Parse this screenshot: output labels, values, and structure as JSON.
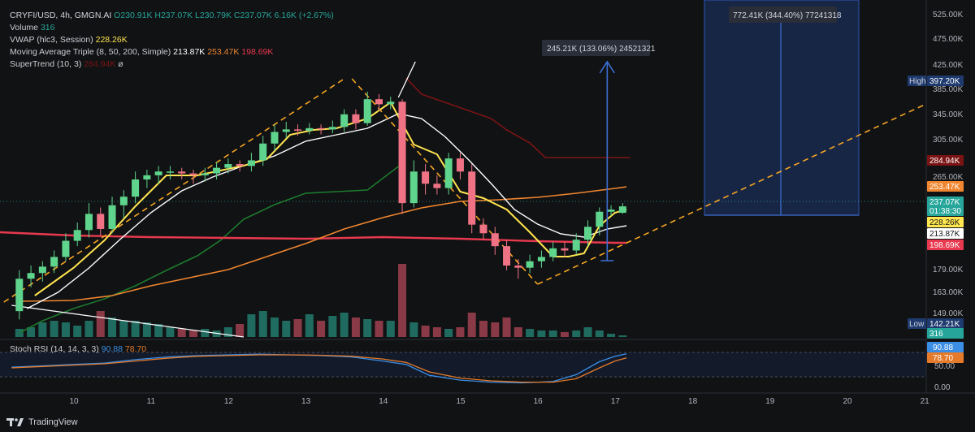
{
  "header": {
    "symbol": "CRYFI/USD, 4h, GMGN.AI",
    "ohlc": "O230.91K H237.07K L230.79K C237.07K 6.16K (+2.67%)",
    "volume_label": "Volume",
    "volume_value": "316",
    "vwap_label": "VWAP (hlc3, Session)",
    "vwap_value": "228.26K",
    "ma_label": "Moving Average Triple (8, 50, 200, Simple)",
    "ma_values": [
      "213.87K",
      "253.47K",
      "198.69K"
    ],
    "supertrend_label": "SuperTrend (10, 3)",
    "supertrend_value": "284.94K",
    "supertrend_extra": "ø"
  },
  "stoch": {
    "label": "Stoch RSI (14, 14, 3, 3)",
    "k_value": "90.88",
    "d_value": "78.70"
  },
  "branding": {
    "name": "TradingView"
  },
  "colors": {
    "up": "#26a69a",
    "up_bright": "#5fd48c",
    "down": "#ef5350",
    "down_light": "#f07385",
    "ma_fast": "#ffffff",
    "ma_mid": "#f0862f",
    "ma_slow": "#e8394f",
    "vwap": "#ffe54f",
    "supertrend_up": "#1d7a2e",
    "supertrend_down": "#7a1414",
    "stoch_k": "#3a8ee6",
    "stoch_d": "#e47a2a",
    "target": "#3d6fd6",
    "trend": "#f5a623"
  },
  "chart_data": [
    {
      "type": "candlestick",
      "title": "CRYFI/USD, 4h, GMGN.AI",
      "yaxis_ticks": [
        "525.00K",
        "475.00K",
        "425.00K",
        "385.00K",
        "345.00K",
        "305.00K",
        "265.00K",
        "179.00K",
        "163.00K",
        "149.00K"
      ],
      "xaxis_ticks": [
        "10",
        "11",
        "12",
        "13",
        "14",
        "15",
        "16",
        "17",
        "18",
        "19",
        "20",
        "21"
      ],
      "price_labels": [
        {
          "text": "High",
          "value": "397.20K",
          "color": "#1e3a6e"
        },
        {
          "text": "",
          "value": "284.94K",
          "color": "#7a1414"
        },
        {
          "text": "",
          "value": "253.47K",
          "color": "#f0862f"
        },
        {
          "text": "",
          "value": "237.07K",
          "color": "#26a69a"
        },
        {
          "text": "",
          "value": "01:38:30",
          "color": "#26a69a"
        },
        {
          "text": "",
          "value": "228.26K",
          "color": "#ffe54f"
        },
        {
          "text": "",
          "value": "213.87K",
          "color": "#ffffff"
        },
        {
          "text": "",
          "value": "198.69K",
          "color": "#e8394f"
        },
        {
          "text": "Low",
          "value": "142.21K",
          "color": "#1e3a6e"
        },
        {
          "text": "",
          "value": "316",
          "color": "#26a69a"
        }
      ],
      "candles": [
        {
          "x": 9.3,
          "o": 150,
          "c": 172,
          "h": 178,
          "l": 144
        },
        {
          "x": 9.45,
          "o": 172,
          "c": 176,
          "h": 182,
          "l": 166
        },
        {
          "x": 9.6,
          "o": 176,
          "c": 181,
          "h": 186,
          "l": 170
        },
        {
          "x": 9.75,
          "o": 181,
          "c": 190,
          "h": 196,
          "l": 176
        },
        {
          "x": 9.9,
          "o": 190,
          "c": 205,
          "h": 212,
          "l": 186
        },
        {
          "x": 10.05,
          "o": 205,
          "c": 215,
          "h": 222,
          "l": 200
        },
        {
          "x": 10.2,
          "o": 215,
          "c": 230,
          "h": 240,
          "l": 208
        },
        {
          "x": 10.35,
          "o": 230,
          "c": 216,
          "h": 236,
          "l": 210
        },
        {
          "x": 10.5,
          "o": 216,
          "c": 238,
          "h": 246,
          "l": 212
        },
        {
          "x": 10.65,
          "o": 238,
          "c": 246,
          "h": 252,
          "l": 226
        },
        {
          "x": 10.8,
          "o": 246,
          "c": 262,
          "h": 270,
          "l": 240
        },
        {
          "x": 10.95,
          "o": 262,
          "c": 266,
          "h": 272,
          "l": 254
        },
        {
          "x": 11.1,
          "o": 266,
          "c": 270,
          "h": 276,
          "l": 258
        },
        {
          "x": 11.25,
          "o": 270,
          "c": 270,
          "h": 276,
          "l": 262
        },
        {
          "x": 11.4,
          "o": 270,
          "c": 268,
          "h": 274,
          "l": 262
        },
        {
          "x": 11.55,
          "o": 268,
          "c": 266,
          "h": 272,
          "l": 258
        },
        {
          "x": 11.7,
          "o": 266,
          "c": 268,
          "h": 274,
          "l": 260
        },
        {
          "x": 11.85,
          "o": 268,
          "c": 274,
          "h": 280,
          "l": 262
        },
        {
          "x": 12.0,
          "o": 274,
          "c": 278,
          "h": 284,
          "l": 268
        },
        {
          "x": 12.15,
          "o": 278,
          "c": 276,
          "h": 282,
          "l": 270
        },
        {
          "x": 12.3,
          "o": 276,
          "c": 282,
          "h": 290,
          "l": 270
        },
        {
          "x": 12.45,
          "o": 282,
          "c": 300,
          "h": 310,
          "l": 276
        },
        {
          "x": 12.6,
          "o": 300,
          "c": 316,
          "h": 328,
          "l": 292
        },
        {
          "x": 12.75,
          "o": 316,
          "c": 320,
          "h": 332,
          "l": 306
        },
        {
          "x": 12.9,
          "o": 320,
          "c": 318,
          "h": 328,
          "l": 310
        },
        {
          "x": 13.05,
          "o": 318,
          "c": 322,
          "h": 330,
          "l": 312
        },
        {
          "x": 13.2,
          "o": 322,
          "c": 320,
          "h": 328,
          "l": 312
        },
        {
          "x": 13.35,
          "o": 320,
          "c": 324,
          "h": 334,
          "l": 314
        },
        {
          "x": 13.5,
          "o": 324,
          "c": 344,
          "h": 352,
          "l": 316
        },
        {
          "x": 13.65,
          "o": 344,
          "c": 330,
          "h": 352,
          "l": 320
        },
        {
          "x": 13.8,
          "o": 330,
          "c": 368,
          "h": 380,
          "l": 326
        },
        {
          "x": 13.95,
          "o": 368,
          "c": 360,
          "h": 376,
          "l": 350
        },
        {
          "x": 14.1,
          "o": 360,
          "c": 364,
          "h": 372,
          "l": 352
        },
        {
          "x": 14.25,
          "o": 364,
          "c": 240,
          "h": 368,
          "l": 230
        },
        {
          "x": 14.4,
          "o": 240,
          "c": 270,
          "h": 282,
          "l": 236
        },
        {
          "x": 14.55,
          "o": 270,
          "c": 258,
          "h": 278,
          "l": 248
        },
        {
          "x": 14.7,
          "o": 258,
          "c": 254,
          "h": 266,
          "l": 248
        },
        {
          "x": 14.85,
          "o": 254,
          "c": 284,
          "h": 290,
          "l": 248
        },
        {
          "x": 15.0,
          "o": 284,
          "c": 270,
          "h": 290,
          "l": 262
        },
        {
          "x": 15.15,
          "o": 270,
          "c": 220,
          "h": 278,
          "l": 212
        },
        {
          "x": 15.3,
          "o": 220,
          "c": 212,
          "h": 226,
          "l": 206
        },
        {
          "x": 15.45,
          "o": 212,
          "c": 200,
          "h": 218,
          "l": 192
        },
        {
          "x": 15.6,
          "o": 200,
          "c": 182,
          "h": 206,
          "l": 178
        },
        {
          "x": 15.75,
          "o": 182,
          "c": 180,
          "h": 188,
          "l": 172
        },
        {
          "x": 15.9,
          "o": 180,
          "c": 186,
          "h": 192,
          "l": 176
        },
        {
          "x": 16.05,
          "o": 186,
          "c": 190,
          "h": 196,
          "l": 180
        },
        {
          "x": 16.2,
          "o": 190,
          "c": 198,
          "h": 204,
          "l": 186
        },
        {
          "x": 16.35,
          "o": 198,
          "c": 196,
          "h": 204,
          "l": 190
        },
        {
          "x": 16.5,
          "o": 196,
          "c": 206,
          "h": 212,
          "l": 192
        },
        {
          "x": 16.65,
          "o": 206,
          "c": 218,
          "h": 224,
          "l": 200
        },
        {
          "x": 16.8,
          "o": 218,
          "c": 232,
          "h": 236,
          "l": 210
        },
        {
          "x": 16.95,
          "o": 232,
          "c": 234,
          "h": 238,
          "l": 228
        },
        {
          "x": 17.1,
          "o": 231,
          "c": 237,
          "h": 240,
          "l": 230
        }
      ],
      "volume": [
        {
          "x": 9.3,
          "v": 0.5
        },
        {
          "x": 9.45,
          "v": 0.6
        },
        {
          "x": 9.6,
          "v": 0.9
        },
        {
          "x": 9.75,
          "v": 1.0
        },
        {
          "x": 9.9,
          "v": 0.9
        },
        {
          "x": 10.05,
          "v": 0.7
        },
        {
          "x": 10.2,
          "v": 1.0
        },
        {
          "x": 10.35,
          "v": 1.6
        },
        {
          "x": 10.5,
          "v": 1.2
        },
        {
          "x": 10.65,
          "v": 1.0
        },
        {
          "x": 10.8,
          "v": 1.0
        },
        {
          "x": 10.95,
          "v": 0.9
        },
        {
          "x": 11.1,
          "v": 0.8
        },
        {
          "x": 11.25,
          "v": 0.6
        },
        {
          "x": 11.4,
          "v": 0.5
        },
        {
          "x": 11.55,
          "v": 0.4
        },
        {
          "x": 11.7,
          "v": 0.5
        },
        {
          "x": 11.85,
          "v": 0.4
        },
        {
          "x": 12.0,
          "v": 0.6
        },
        {
          "x": 12.15,
          "v": 0.8
        },
        {
          "x": 12.3,
          "v": 1.4
        },
        {
          "x": 12.45,
          "v": 1.6
        },
        {
          "x": 12.6,
          "v": 1.2
        },
        {
          "x": 12.75,
          "v": 1.0
        },
        {
          "x": 12.9,
          "v": 1.1
        },
        {
          "x": 13.05,
          "v": 1.4
        },
        {
          "x": 13.2,
          "v": 1.0
        },
        {
          "x": 13.35,
          "v": 1.3
        },
        {
          "x": 13.5,
          "v": 1.5
        },
        {
          "x": 13.65,
          "v": 1.2
        },
        {
          "x": 13.8,
          "v": 1.1
        },
        {
          "x": 13.95,
          "v": 1.0
        },
        {
          "x": 14.1,
          "v": 1.0
        },
        {
          "x": 14.25,
          "v": 4.5
        },
        {
          "x": 14.4,
          "v": 0.9
        },
        {
          "x": 14.55,
          "v": 0.7
        },
        {
          "x": 14.7,
          "v": 0.6
        },
        {
          "x": 14.85,
          "v": 0.5
        },
        {
          "x": 15.0,
          "v": 0.6
        },
        {
          "x": 15.15,
          "v": 1.5
        },
        {
          "x": 15.3,
          "v": 1.0
        },
        {
          "x": 15.45,
          "v": 0.9
        },
        {
          "x": 15.6,
          "v": 1.2
        },
        {
          "x": 15.75,
          "v": 0.6
        },
        {
          "x": 15.9,
          "v": 0.5
        },
        {
          "x": 16.05,
          "v": 0.4
        },
        {
          "x": 16.2,
          "v": 0.4
        },
        {
          "x": 16.35,
          "v": 0.3
        },
        {
          "x": 16.5,
          "v": 0.4
        },
        {
          "x": 16.65,
          "v": 0.6
        },
        {
          "x": 16.8,
          "v": 0.4
        },
        {
          "x": 16.95,
          "v": 0.2
        },
        {
          "x": 17.1,
          "v": 0.1
        }
      ],
      "annotations": {
        "target_box_label": "772.41K (344.40%) 77241318",
        "arrow_label": "245.21K (133.06%) 24521321"
      }
    },
    {
      "type": "line",
      "title": "Stoch RSI (14, 14, 3, 3)",
      "yaxis_ticks": [
        "50.00",
        "0.00"
      ],
      "value_labels": [
        "90.88",
        "78.70"
      ],
      "series": [
        {
          "name": "K",
          "values": [
            {
              "x": 9.2,
              "y": 52
            },
            {
              "x": 9.6,
              "y": 56
            },
            {
              "x": 10.0,
              "y": 60
            },
            {
              "x": 10.4,
              "y": 64
            },
            {
              "x": 10.8,
              "y": 74
            },
            {
              "x": 11.2,
              "y": 82
            },
            {
              "x": 11.6,
              "y": 86
            },
            {
              "x": 12.0,
              "y": 88
            },
            {
              "x": 12.4,
              "y": 90
            },
            {
              "x": 12.8,
              "y": 88
            },
            {
              "x": 13.2,
              "y": 86
            },
            {
              "x": 13.6,
              "y": 82
            },
            {
              "x": 14.0,
              "y": 70
            },
            {
              "x": 14.3,
              "y": 60
            },
            {
              "x": 14.6,
              "y": 28
            },
            {
              "x": 15.0,
              "y": 14
            },
            {
              "x": 15.4,
              "y": 8
            },
            {
              "x": 15.8,
              "y": 6
            },
            {
              "x": 16.2,
              "y": 10
            },
            {
              "x": 16.5,
              "y": 30
            },
            {
              "x": 16.8,
              "y": 68
            },
            {
              "x": 17.0,
              "y": 84
            },
            {
              "x": 17.15,
              "y": 91
            }
          ]
        },
        {
          "name": "D",
          "values": [
            {
              "x": 9.2,
              "y": 50
            },
            {
              "x": 9.6,
              "y": 54
            },
            {
              "x": 10.0,
              "y": 58
            },
            {
              "x": 10.4,
              "y": 62
            },
            {
              "x": 10.8,
              "y": 70
            },
            {
              "x": 11.2,
              "y": 78
            },
            {
              "x": 11.6,
              "y": 84
            },
            {
              "x": 12.0,
              "y": 86
            },
            {
              "x": 12.4,
              "y": 88
            },
            {
              "x": 12.8,
              "y": 88
            },
            {
              "x": 13.2,
              "y": 87
            },
            {
              "x": 13.6,
              "y": 84
            },
            {
              "x": 14.0,
              "y": 76
            },
            {
              "x": 14.3,
              "y": 66
            },
            {
              "x": 14.6,
              "y": 38
            },
            {
              "x": 15.0,
              "y": 20
            },
            {
              "x": 15.4,
              "y": 12
            },
            {
              "x": 15.8,
              "y": 8
            },
            {
              "x": 16.2,
              "y": 8
            },
            {
              "x": 16.5,
              "y": 18
            },
            {
              "x": 16.8,
              "y": 50
            },
            {
              "x": 17.0,
              "y": 70
            },
            {
              "x": 17.15,
              "y": 79
            }
          ]
        }
      ]
    }
  ]
}
